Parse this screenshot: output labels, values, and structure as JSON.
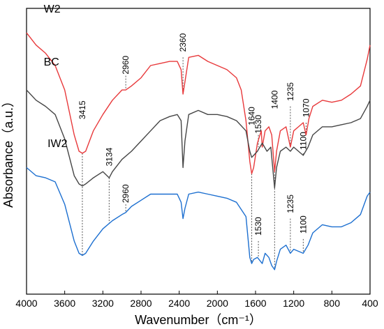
{
  "chart_data": {
    "type": "line",
    "title": "",
    "xlabel": "Wavenumber（cm⁻¹）",
    "ylabel": "Absorbance（a.u.）",
    "xlim": [
      4000,
      400
    ],
    "x_reversed": true,
    "x_ticks": [
      4000,
      3600,
      3200,
      2800,
      2400,
      2000,
      1600,
      1200,
      800,
      400
    ],
    "y_ticks_shown": false,
    "grid": false,
    "legend": "none",
    "series": [
      {
        "name": "W2",
        "color": "#e8393b",
        "points": [
          [
            4000,
            0.88
          ],
          [
            3900,
            0.82
          ],
          [
            3800,
            0.78
          ],
          [
            3700,
            0.72
          ],
          [
            3600,
            0.6
          ],
          [
            3500,
            0.38
          ],
          [
            3450,
            0.3
          ],
          [
            3415,
            0.29
          ],
          [
            3380,
            0.3
          ],
          [
            3300,
            0.4
          ],
          [
            3200,
            0.48
          ],
          [
            3100,
            0.55
          ],
          [
            3000,
            0.6
          ],
          [
            2960,
            0.6
          ],
          [
            2900,
            0.62
          ],
          [
            2800,
            0.66
          ],
          [
            2700,
            0.72
          ],
          [
            2600,
            0.73
          ],
          [
            2500,
            0.74
          ],
          [
            2420,
            0.74
          ],
          [
            2380,
            0.7
          ],
          [
            2360,
            0.58
          ],
          [
            2340,
            0.64
          ],
          [
            2300,
            0.76
          ],
          [
            2200,
            0.77
          ],
          [
            2100,
            0.74
          ],
          [
            2000,
            0.72
          ],
          [
            1900,
            0.7
          ],
          [
            1800,
            0.66
          ],
          [
            1750,
            0.6
          ],
          [
            1700,
            0.45
          ],
          [
            1660,
            0.25
          ],
          [
            1640,
            0.19
          ],
          [
            1620,
            0.22
          ],
          [
            1580,
            0.34
          ],
          [
            1540,
            0.4
          ],
          [
            1530,
            0.32
          ],
          [
            1500,
            0.4
          ],
          [
            1460,
            0.42
          ],
          [
            1430,
            0.38
          ],
          [
            1400,
            0.2
          ],
          [
            1380,
            0.3
          ],
          [
            1340,
            0.4
          ],
          [
            1280,
            0.42
          ],
          [
            1235,
            0.32
          ],
          [
            1200,
            0.4
          ],
          [
            1150,
            0.42
          ],
          [
            1100,
            0.44
          ],
          [
            1070,
            0.38
          ],
          [
            1040,
            0.46
          ],
          [
            1000,
            0.52
          ],
          [
            900,
            0.55
          ],
          [
            800,
            0.54
          ],
          [
            700,
            0.55
          ],
          [
            600,
            0.58
          ],
          [
            500,
            0.62
          ],
          [
            430,
            0.75
          ],
          [
            400,
            0.82
          ]
        ]
      },
      {
        "name": "BC",
        "color": "#454545",
        "points": [
          [
            4000,
            0.6
          ],
          [
            3900,
            0.55
          ],
          [
            3800,
            0.52
          ],
          [
            3700,
            0.48
          ],
          [
            3600,
            0.36
          ],
          [
            3500,
            0.18
          ],
          [
            3450,
            0.14
          ],
          [
            3415,
            0.13
          ],
          [
            3380,
            0.14
          ],
          [
            3300,
            0.17
          ],
          [
            3200,
            0.2
          ],
          [
            3134,
            0.17
          ],
          [
            3100,
            0.2
          ],
          [
            3000,
            0.26
          ],
          [
            2900,
            0.3
          ],
          [
            2800,
            0.35
          ],
          [
            2700,
            0.4
          ],
          [
            2600,
            0.45
          ],
          [
            2500,
            0.47
          ],
          [
            2420,
            0.48
          ],
          [
            2380,
            0.45
          ],
          [
            2360,
            0.22
          ],
          [
            2340,
            0.35
          ],
          [
            2300,
            0.48
          ],
          [
            2200,
            0.5
          ],
          [
            2100,
            0.48
          ],
          [
            2000,
            0.48
          ],
          [
            1900,
            0.47
          ],
          [
            1800,
            0.45
          ],
          [
            1700,
            0.4
          ],
          [
            1660,
            0.3
          ],
          [
            1640,
            0.27
          ],
          [
            1620,
            0.28
          ],
          [
            1580,
            0.3
          ],
          [
            1530,
            0.34
          ],
          [
            1480,
            0.3
          ],
          [
            1440,
            0.32
          ],
          [
            1400,
            0.12
          ],
          [
            1380,
            0.22
          ],
          [
            1340,
            0.3
          ],
          [
            1280,
            0.32
          ],
          [
            1235,
            0.3
          ],
          [
            1200,
            0.32
          ],
          [
            1150,
            0.3
          ],
          [
            1100,
            0.28
          ],
          [
            1050,
            0.32
          ],
          [
            1000,
            0.38
          ],
          [
            900,
            0.42
          ],
          [
            800,
            0.42
          ],
          [
            700,
            0.43
          ],
          [
            600,
            0.44
          ],
          [
            500,
            0.46
          ],
          [
            430,
            0.52
          ],
          [
            400,
            0.55
          ]
        ]
      },
      {
        "name": "IW2",
        "color": "#1c6fd0",
        "points": [
          [
            4000,
            0.22
          ],
          [
            3900,
            0.18
          ],
          [
            3800,
            0.17
          ],
          [
            3700,
            0.15
          ],
          [
            3600,
            0.04
          ],
          [
            3500,
            -0.14
          ],
          [
            3450,
            -0.2
          ],
          [
            3415,
            -0.21
          ],
          [
            3380,
            -0.2
          ],
          [
            3300,
            -0.14
          ],
          [
            3200,
            -0.08
          ],
          [
            3100,
            -0.04
          ],
          [
            3000,
            -0.01
          ],
          [
            2960,
            0.0
          ],
          [
            2900,
            0.03
          ],
          [
            2800,
            0.06
          ],
          [
            2700,
            0.09
          ],
          [
            2600,
            0.09
          ],
          [
            2500,
            0.09
          ],
          [
            2420,
            0.09
          ],
          [
            2380,
            0.05
          ],
          [
            2360,
            -0.03
          ],
          [
            2340,
            0.02
          ],
          [
            2300,
            0.09
          ],
          [
            2200,
            0.1
          ],
          [
            2100,
            0.09
          ],
          [
            2000,
            0.08
          ],
          [
            1900,
            0.07
          ],
          [
            1800,
            0.05
          ],
          [
            1700,
            -0.02
          ],
          [
            1660,
            -0.22
          ],
          [
            1640,
            -0.25
          ],
          [
            1620,
            -0.23
          ],
          [
            1580,
            -0.22
          ],
          [
            1530,
            -0.25
          ],
          [
            1500,
            -0.2
          ],
          [
            1460,
            -0.22
          ],
          [
            1430,
            -0.26
          ],
          [
            1400,
            -0.28
          ],
          [
            1380,
            -0.24
          ],
          [
            1340,
            -0.18
          ],
          [
            1280,
            -0.16
          ],
          [
            1235,
            -0.2
          ],
          [
            1200,
            -0.18
          ],
          [
            1150,
            -0.19
          ],
          [
            1100,
            -0.2
          ],
          [
            1050,
            -0.16
          ],
          [
            1000,
            -0.1
          ],
          [
            900,
            -0.06
          ],
          [
            800,
            -0.07
          ],
          [
            700,
            -0.07
          ],
          [
            600,
            -0.05
          ],
          [
            500,
            -0.01
          ],
          [
            430,
            0.08
          ],
          [
            400,
            0.1
          ]
        ]
      }
    ],
    "series_label_positions": [
      {
        "name": "W2",
        "x": 3820,
        "y": 0.98
      },
      {
        "name": "BC",
        "x": 3820,
        "y": 0.72
      },
      {
        "name": "IW2",
        "x": 3780,
        "y": 0.32
      }
    ],
    "annotations": [
      {
        "label": "3415",
        "x": 3415,
        "y_from": 0.29,
        "y_to": -0.21,
        "label_y": 0.45
      },
      {
        "label": "2960",
        "x": 2960,
        "y_from": 0.6,
        "y_to": 0.67,
        "label_y": 0.67
      },
      {
        "label": "2360",
        "x": 2360,
        "y_from": 0.58,
        "y_to": 0.76,
        "label_y": 0.78
      },
      {
        "label": "1640",
        "x": 1640,
        "y_from": 0.19,
        "y_to": -0.25,
        "label_y": 0.42
      },
      {
        "label": "1530",
        "x": 1570,
        "y_from": 0.32,
        "y_to": 0.38,
        "label_y": 0.38
      },
      {
        "label": "1400",
        "x": 1400,
        "y_from": 0.2,
        "y_to": -0.28,
        "label_y": 0.5
      },
      {
        "label": "1235",
        "x": 1235,
        "y_from": 0.32,
        "y_to": 0.52,
        "label_y": 0.54
      },
      {
        "label": "1070",
        "x": 1070,
        "y_from": 0.38,
        "y_to": 0.44,
        "label_y": 0.46
      },
      {
        "label": "3134",
        "x": 3134,
        "y_from": 0.17,
        "y_to": -0.05,
        "label_y": 0.22
      },
      {
        "label": "1100",
        "x": 1100,
        "y_from": 0.28,
        "y_to": 0.29,
        "label_y": 0.3
      },
      {
        "label": "2960",
        "x": 2960,
        "y_from": 0.0,
        "y_to": 0.04,
        "label_y": 0.04
      },
      {
        "label": "1530",
        "x": 1570,
        "y_from": -0.22,
        "y_to": -0.14,
        "label_y": -0.12
      },
      {
        "label": "1235",
        "x": 1235,
        "y_from": -0.2,
        "y_to": -0.03,
        "label_y": -0.01
      },
      {
        "label": "1100",
        "x": 1100,
        "y_from": -0.2,
        "y_to": -0.13,
        "label_y": -0.11
      }
    ]
  }
}
